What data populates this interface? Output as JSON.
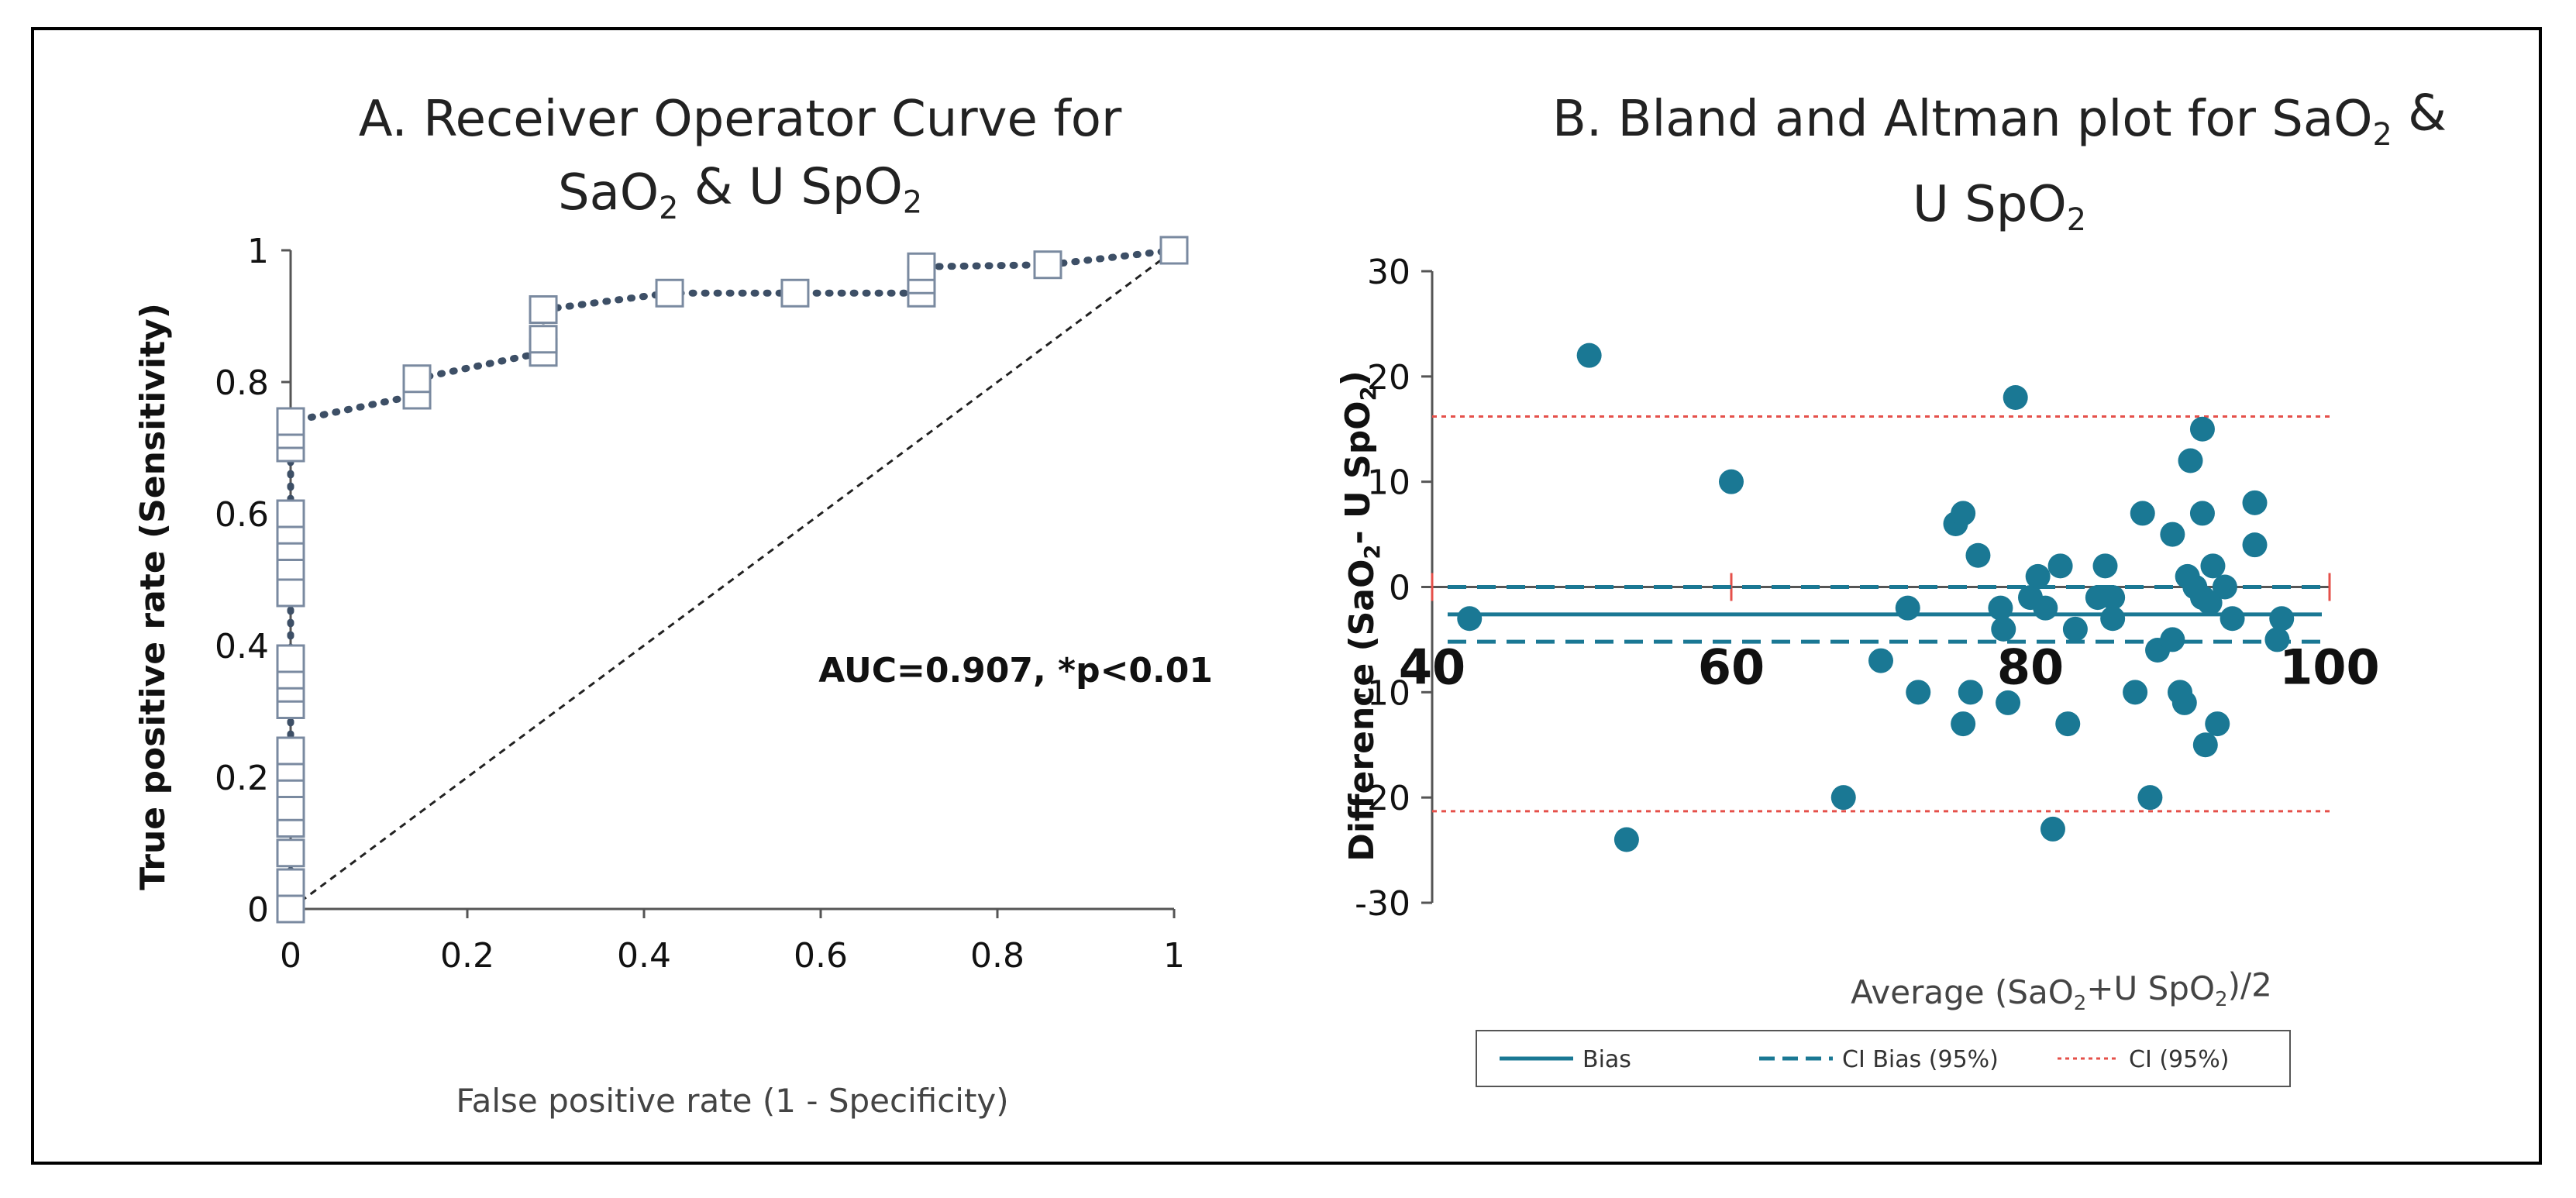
{
  "chart_data": [
    {
      "type": "line",
      "title_line1": "A. Receiver Operator Curve for",
      "title_line2": [
        "SaO",
        "2",
        " &  U SpO",
        "2"
      ],
      "xlabel": "False positive rate (1 - Specificity)",
      "ylabel": "True positive rate (Sensitivity)",
      "xlim": [
        0,
        1
      ],
      "ylim": [
        0,
        1
      ],
      "xticks": [
        "0",
        "0.2",
        "0.4",
        "0.6",
        "0.8",
        "1"
      ],
      "yticks": [
        "0",
        "0.2",
        "0.4",
        "0.6",
        "0.8",
        "1"
      ],
      "xtick_values": [
        0,
        0.2,
        0.4,
        0.6,
        0.8,
        1
      ],
      "ytick_values": [
        0,
        0.2,
        0.4,
        0.6,
        0.8,
        1
      ],
      "annotation": "AUC=0.907, *p<0.01",
      "series": [
        {
          "style": "dotted-with-square-markers",
          "color": "#3d4f66",
          "points": [
            [
              0,
              0
            ],
            [
              0,
              0.04
            ],
            [
              0,
              0.085
            ],
            [
              0,
              0.13
            ],
            [
              0,
              0.155
            ],
            [
              0,
              0.19
            ],
            [
              0,
              0.215
            ],
            [
              0,
              0.24
            ],
            [
              0,
              0.31
            ],
            [
              0,
              0.335
            ],
            [
              0,
              0.355
            ],
            [
              0,
              0.38
            ],
            [
              0,
              0.48
            ],
            [
              0,
              0.52
            ],
            [
              0,
              0.55
            ],
            [
              0,
              0.575
            ],
            [
              0,
              0.6
            ],
            [
              0,
              0.7
            ],
            [
              0,
              0.72
            ],
            [
              0,
              0.74
            ],
            [
              0.143,
              0.78
            ],
            [
              0.143,
              0.805
            ],
            [
              0.286,
              0.845
            ],
            [
              0.286,
              0.865
            ],
            [
              0.286,
              0.91
            ],
            [
              0.429,
              0.935
            ],
            [
              0.571,
              0.935
            ],
            [
              0.714,
              0.935
            ],
            [
              0.714,
              0.955
            ],
            [
              0.714,
              0.975
            ],
            [
              0.857,
              0.978
            ],
            [
              1,
              1
            ]
          ]
        },
        {
          "style": "dashed-reference",
          "color": "#222222",
          "points": [
            [
              0,
              0
            ],
            [
              1,
              1
            ]
          ]
        }
      ]
    },
    {
      "type": "scatter",
      "title_line1": [
        "B. Bland and Altman plot for SaO",
        "2",
        " &"
      ],
      "title_line2": [
        "U SpO",
        "2"
      ],
      "xlabel": [
        "Average (SaO",
        "2",
        "+U SpO",
        "2",
        ")/2"
      ],
      "ylabel": [
        "Difference (SaO",
        "2",
        "- U SpO",
        "2",
        ")"
      ],
      "xlim": [
        40,
        100
      ],
      "ylim": [
        -30,
        30
      ],
      "xticks": [
        "40",
        "60",
        "80",
        "100"
      ],
      "yticks": [
        "-30",
        "-20",
        "-10",
        "0",
        "10",
        "20",
        "30"
      ],
      "xtick_values": [
        40,
        60,
        80,
        100
      ],
      "ytick_values": [
        -30,
        -20,
        -10,
        0,
        10,
        20,
        30
      ],
      "lines": {
        "bias": -2.6,
        "ci_bias": [
          -5.2,
          0
        ],
        "ci": [
          -21.3,
          16.2
        ]
      },
      "legend": [
        "Bias",
        "CI Bias (95%)",
        "CI (95%)"
      ],
      "colors": {
        "points": "#1a7894",
        "bias": "#1a7894",
        "ci_bias": "#1a7894",
        "ci": "#e5504a"
      },
      "points": [
        [
          42.5,
          -3
        ],
        [
          50.5,
          22
        ],
        [
          53,
          -24
        ],
        [
          60,
          10
        ],
        [
          67.5,
          -20
        ],
        [
          70,
          -7
        ],
        [
          71.8,
          -2
        ],
        [
          72.5,
          -10
        ],
        [
          75,
          6
        ],
        [
          75.5,
          7
        ],
        [
          75.5,
          -13
        ],
        [
          76,
          -10
        ],
        [
          76.5,
          3
        ],
        [
          78,
          -2
        ],
        [
          78.2,
          -4
        ],
        [
          78.5,
          -11
        ],
        [
          79,
          18
        ],
        [
          80,
          -1
        ],
        [
          80.5,
          1
        ],
        [
          81,
          -2
        ],
        [
          82,
          2
        ],
        [
          82.5,
          -13
        ],
        [
          83,
          -4
        ],
        [
          81.5,
          -23
        ],
        [
          84.5,
          -1
        ],
        [
          85,
          2
        ],
        [
          85.5,
          -1
        ],
        [
          85.5,
          -3
        ],
        [
          87,
          -10
        ],
        [
          87.5,
          7
        ],
        [
          88,
          -20
        ],
        [
          88.5,
          -6
        ],
        [
          89.5,
          -5
        ],
        [
          89.5,
          5
        ],
        [
          90,
          -10
        ],
        [
          90.3,
          -11
        ],
        [
          90.5,
          1
        ],
        [
          90.7,
          12
        ],
        [
          91,
          0
        ],
        [
          91.5,
          15
        ],
        [
          91.5,
          7
        ],
        [
          91.5,
          -1
        ],
        [
          91.7,
          -15
        ],
        [
          92,
          -1.5
        ],
        [
          92.2,
          2
        ],
        [
          92.5,
          -13
        ],
        [
          93,
          0
        ],
        [
          93.5,
          -3
        ],
        [
          95,
          8
        ],
        [
          95,
          4
        ],
        [
          96.5,
          -5
        ],
        [
          96.8,
          -3
        ]
      ]
    }
  ]
}
